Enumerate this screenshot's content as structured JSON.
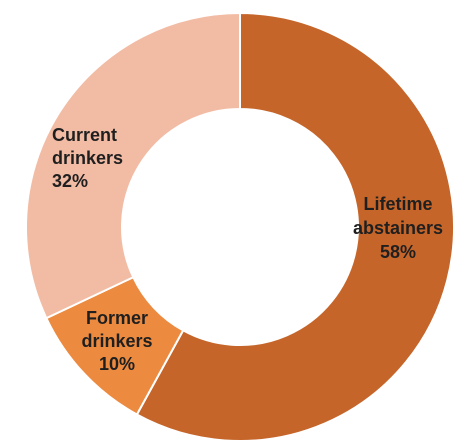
{
  "chart_data": {
    "type": "pie",
    "donut": true,
    "categories": [
      "Lifetime abstainers",
      "Former drinkers",
      "Current drinkers"
    ],
    "values": [
      58,
      10,
      32
    ],
    "unit": "%",
    "colors": [
      "#c5652a",
      "#ec8a3f",
      "#f2bba4"
    ],
    "labels": [
      [
        "Lifetime",
        "abstainers",
        "58%"
      ],
      [
        "Former",
        "drinkers",
        "10%"
      ],
      [
        "Current",
        "drinkers",
        "32%"
      ]
    ],
    "start_angle_deg": 0,
    "direction": "clockwise",
    "legend": "none",
    "title": ""
  }
}
